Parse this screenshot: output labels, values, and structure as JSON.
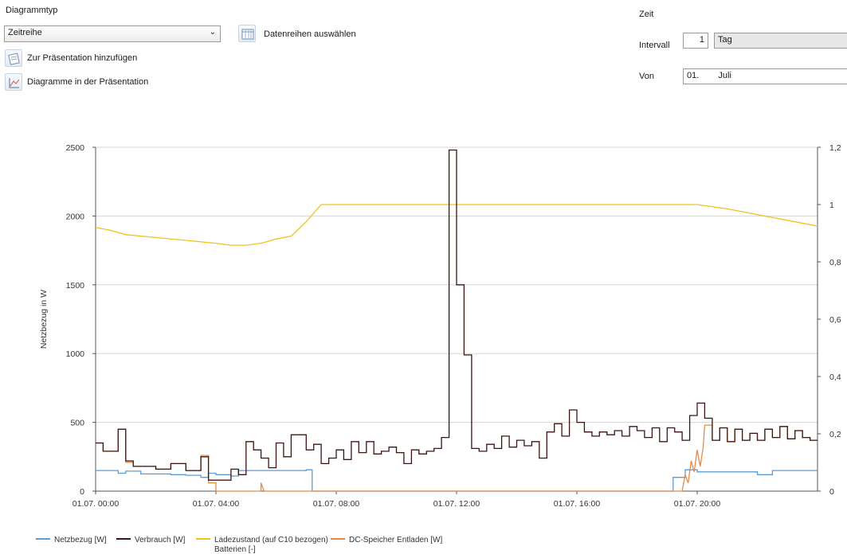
{
  "toolbar": {
    "diagram_type_label": "Diagrammtyp",
    "diagram_type_value": "Zeitreihe",
    "select_series_label": "Datenreihen auswählen",
    "add_to_presentation_label": "Zur Präsentation hinzufügen",
    "diagrams_in_presentation_label": "Diagramme in der Präsentation"
  },
  "time_panel": {
    "time_label": "Zeit",
    "interval_label": "Intervall",
    "interval_value": "1",
    "interval_unit": "Tag",
    "from_label": "Von",
    "from_day": "01.",
    "from_month": "Juli"
  },
  "chart_data": {
    "type": "line",
    "ylabel": "Netzbezug  in W",
    "x_ticks": [
      "01.07. 00:00",
      "01.07. 04:00",
      "01.07. 08:00",
      "01.07. 12:00",
      "01.07. 16:00",
      "01.07. 20:00"
    ],
    "xlim_hours": [
      0,
      24
    ],
    "ylim_left": [
      0,
      2500
    ],
    "ylim_right": [
      0,
      1.2
    ],
    "y_ticks_left": [
      "2500",
      "2000",
      "1500",
      "1000",
      "500",
      "0"
    ],
    "y_ticks_right": [
      "1,2",
      "1",
      "0,8",
      "0,6",
      "0,4",
      "0,2",
      "0"
    ],
    "grid": true,
    "legend_position": "bottom-left",
    "series": [
      {
        "name": "Netzbezug  [W]",
        "axis": "left",
        "color": "#5b9bd5",
        "points": [
          [
            0,
            150
          ],
          [
            0.75,
            150
          ],
          [
            0.75,
            130
          ],
          [
            1.0,
            130
          ],
          [
            1.0,
            145
          ],
          [
            1.5,
            145
          ],
          [
            1.5,
            125
          ],
          [
            2.5,
            125
          ],
          [
            2.5,
            120
          ],
          [
            3.0,
            120
          ],
          [
            3.0,
            115
          ],
          [
            3.5,
            115
          ],
          [
            3.5,
            100
          ],
          [
            3.75,
            100
          ],
          [
            3.75,
            130
          ],
          [
            4.0,
            130
          ],
          [
            4.0,
            120
          ],
          [
            4.5,
            120
          ],
          [
            4.5,
            110
          ],
          [
            4.75,
            110
          ],
          [
            4.75,
            150
          ],
          [
            7.0,
            150
          ],
          [
            7.0,
            155
          ],
          [
            7.2,
            155
          ],
          [
            7.2,
            0
          ],
          [
            19.2,
            0
          ],
          [
            19.2,
            100
          ],
          [
            19.6,
            100
          ],
          [
            19.6,
            155
          ],
          [
            20.0,
            155
          ],
          [
            20.0,
            140
          ],
          [
            22.0,
            140
          ],
          [
            22.0,
            120
          ],
          [
            22.5,
            120
          ],
          [
            22.5,
            150
          ],
          [
            24,
            150
          ]
        ]
      },
      {
        "name": "Verbrauch  [W]",
        "axis": "left",
        "color": "#3c1512",
        "points": [
          [
            0,
            350
          ],
          [
            0.25,
            350
          ],
          [
            0.25,
            290
          ],
          [
            0.75,
            290
          ],
          [
            0.75,
            450
          ],
          [
            1.0,
            450
          ],
          [
            1.0,
            220
          ],
          [
            1.25,
            220
          ],
          [
            1.25,
            180
          ],
          [
            2.0,
            180
          ],
          [
            2.0,
            160
          ],
          [
            2.5,
            160
          ],
          [
            2.5,
            200
          ],
          [
            3.0,
            200
          ],
          [
            3.0,
            150
          ],
          [
            3.5,
            150
          ],
          [
            3.5,
            250
          ],
          [
            3.75,
            250
          ],
          [
            3.75,
            80
          ],
          [
            4.5,
            80
          ],
          [
            4.5,
            160
          ],
          [
            4.75,
            160
          ],
          [
            4.75,
            120
          ],
          [
            5.0,
            120
          ],
          [
            5.0,
            360
          ],
          [
            5.25,
            360
          ],
          [
            5.25,
            300
          ],
          [
            5.5,
            300
          ],
          [
            5.5,
            240
          ],
          [
            5.75,
            240
          ],
          [
            5.75,
            170
          ],
          [
            6.0,
            170
          ],
          [
            6.0,
            350
          ],
          [
            6.25,
            350
          ],
          [
            6.25,
            250
          ],
          [
            6.5,
            250
          ],
          [
            6.5,
            410
          ],
          [
            7.0,
            410
          ],
          [
            7.0,
            300
          ],
          [
            7.25,
            300
          ],
          [
            7.25,
            340
          ],
          [
            7.5,
            340
          ],
          [
            7.5,
            200
          ],
          [
            7.75,
            200
          ],
          [
            7.75,
            240
          ],
          [
            8.0,
            240
          ],
          [
            8.0,
            300
          ],
          [
            8.25,
            300
          ],
          [
            8.25,
            230
          ],
          [
            8.5,
            230
          ],
          [
            8.5,
            360
          ],
          [
            8.75,
            360
          ],
          [
            8.75,
            280
          ],
          [
            9.0,
            280
          ],
          [
            9.0,
            360
          ],
          [
            9.25,
            360
          ],
          [
            9.25,
            270
          ],
          [
            9.5,
            270
          ],
          [
            9.5,
            290
          ],
          [
            9.75,
            290
          ],
          [
            9.75,
            320
          ],
          [
            10.0,
            320
          ],
          [
            10.0,
            280
          ],
          [
            10.25,
            280
          ],
          [
            10.25,
            200
          ],
          [
            10.5,
            200
          ],
          [
            10.5,
            300
          ],
          [
            10.75,
            300
          ],
          [
            10.75,
            270
          ],
          [
            11.0,
            270
          ],
          [
            11.0,
            290
          ],
          [
            11.25,
            290
          ],
          [
            11.25,
            310
          ],
          [
            11.5,
            310
          ],
          [
            11.5,
            390
          ],
          [
            11.75,
            390
          ],
          [
            11.75,
            2480
          ],
          [
            12.0,
            2480
          ],
          [
            12.0,
            1500
          ],
          [
            12.25,
            1500
          ],
          [
            12.25,
            990
          ],
          [
            12.5,
            990
          ],
          [
            12.5,
            310
          ],
          [
            12.75,
            310
          ],
          [
            12.75,
            290
          ],
          [
            13.0,
            290
          ],
          [
            13.0,
            340
          ],
          [
            13.25,
            340
          ],
          [
            13.25,
            310
          ],
          [
            13.5,
            310
          ],
          [
            13.5,
            400
          ],
          [
            13.75,
            400
          ],
          [
            13.75,
            320
          ],
          [
            14.0,
            320
          ],
          [
            14.0,
            370
          ],
          [
            14.25,
            370
          ],
          [
            14.25,
            330
          ],
          [
            14.5,
            330
          ],
          [
            14.5,
            360
          ],
          [
            14.75,
            360
          ],
          [
            14.75,
            240
          ],
          [
            15.0,
            240
          ],
          [
            15.0,
            430
          ],
          [
            15.25,
            430
          ],
          [
            15.25,
            490
          ],
          [
            15.5,
            490
          ],
          [
            15.5,
            400
          ],
          [
            15.75,
            400
          ],
          [
            15.75,
            590
          ],
          [
            16.0,
            590
          ],
          [
            16.0,
            500
          ],
          [
            16.25,
            500
          ],
          [
            16.25,
            430
          ],
          [
            16.5,
            430
          ],
          [
            16.5,
            400
          ],
          [
            16.75,
            400
          ],
          [
            16.75,
            430
          ],
          [
            17.0,
            430
          ],
          [
            17.0,
            410
          ],
          [
            17.25,
            410
          ],
          [
            17.25,
            440
          ],
          [
            17.5,
            440
          ],
          [
            17.5,
            400
          ],
          [
            17.75,
            400
          ],
          [
            17.75,
            470
          ],
          [
            18.0,
            470
          ],
          [
            18.0,
            440
          ],
          [
            18.25,
            440
          ],
          [
            18.25,
            390
          ],
          [
            18.5,
            390
          ],
          [
            18.5,
            460
          ],
          [
            18.75,
            460
          ],
          [
            18.75,
            360
          ],
          [
            19.0,
            360
          ],
          [
            19.0,
            460
          ],
          [
            19.25,
            460
          ],
          [
            19.25,
            430
          ],
          [
            19.5,
            430
          ],
          [
            19.5,
            370
          ],
          [
            19.75,
            370
          ],
          [
            19.75,
            550
          ],
          [
            20.0,
            550
          ],
          [
            20.0,
            640
          ],
          [
            20.25,
            640
          ],
          [
            20.25,
            530
          ],
          [
            20.5,
            530
          ],
          [
            20.5,
            370
          ],
          [
            20.75,
            370
          ],
          [
            20.75,
            460
          ],
          [
            21.0,
            460
          ],
          [
            21.0,
            360
          ],
          [
            21.25,
            360
          ],
          [
            21.25,
            450
          ],
          [
            21.5,
            450
          ],
          [
            21.5,
            370
          ],
          [
            21.75,
            370
          ],
          [
            21.75,
            420
          ],
          [
            22.0,
            420
          ],
          [
            22.0,
            370
          ],
          [
            22.25,
            370
          ],
          [
            22.25,
            450
          ],
          [
            22.5,
            450
          ],
          [
            22.5,
            390
          ],
          [
            22.75,
            390
          ],
          [
            22.75,
            470
          ],
          [
            23.0,
            470
          ],
          [
            23.0,
            380
          ],
          [
            23.25,
            380
          ],
          [
            23.25,
            440
          ],
          [
            23.5,
            440
          ],
          [
            23.5,
            390
          ],
          [
            23.75,
            390
          ],
          [
            23.75,
            370
          ],
          [
            24,
            370
          ]
        ]
      },
      {
        "name": "Ladezustand (auf C10 bezogen)",
        "name_line2": "Batterien  [-]",
        "axis": "right",
        "color": "#f0c020",
        "points": [
          [
            0,
            0.92
          ],
          [
            0.5,
            0.91
          ],
          [
            1,
            0.895
          ],
          [
            2,
            0.885
          ],
          [
            3,
            0.875
          ],
          [
            4,
            0.865
          ],
          [
            4.5,
            0.858
          ],
          [
            5,
            0.858
          ],
          [
            5.5,
            0.865
          ],
          [
            6,
            0.88
          ],
          [
            6.5,
            0.89
          ],
          [
            7,
            0.94
          ],
          [
            7.5,
            1.0
          ],
          [
            8,
            1.0
          ],
          [
            12,
            1.0
          ],
          [
            16,
            1.0
          ],
          [
            20,
            1.0
          ],
          [
            21,
            0.985
          ],
          [
            22,
            0.965
          ],
          [
            23,
            0.945
          ],
          [
            24,
            0.925
          ]
        ]
      },
      {
        "name": "DC-Speicher Entladen  [W]",
        "axis": "left",
        "color": "#e08b4a",
        "points": [
          [
            0,
            350
          ],
          [
            0.25,
            350
          ],
          [
            0.25,
            290
          ],
          [
            0.75,
            290
          ],
          [
            0.75,
            450
          ],
          [
            1.0,
            450
          ],
          [
            1.0,
            210
          ],
          [
            1.25,
            210
          ],
          [
            1.25,
            180
          ],
          [
            2.0,
            180
          ],
          [
            2.0,
            160
          ],
          [
            2.5,
            160
          ],
          [
            2.5,
            200
          ],
          [
            3.0,
            200
          ],
          [
            3.0,
            150
          ],
          [
            3.5,
            150
          ],
          [
            3.5,
            260
          ],
          [
            3.75,
            260
          ],
          [
            3.75,
            60
          ],
          [
            4.0,
            60
          ],
          [
            4.0,
            0
          ],
          [
            5.5,
            0
          ],
          [
            5.5,
            60
          ],
          [
            5.6,
            0
          ],
          [
            19.5,
            0
          ],
          [
            19.6,
            120
          ],
          [
            19.7,
            60
          ],
          [
            19.8,
            220
          ],
          [
            19.9,
            140
          ],
          [
            20.0,
            300
          ],
          [
            20.1,
            180
          ],
          [
            20.2,
            320
          ],
          [
            20.25,
            480
          ],
          [
            20.5,
            480
          ],
          [
            20.5,
            370
          ],
          [
            20.75,
            370
          ],
          [
            20.75,
            460
          ],
          [
            21.0,
            460
          ],
          [
            21.0,
            360
          ],
          [
            21.25,
            360
          ],
          [
            21.25,
            450
          ],
          [
            21.5,
            450
          ],
          [
            21.5,
            370
          ],
          [
            21.75,
            370
          ],
          [
            21.75,
            420
          ],
          [
            22.0,
            420
          ],
          [
            22.0,
            370
          ],
          [
            22.25,
            370
          ],
          [
            22.25,
            450
          ],
          [
            22.5,
            450
          ],
          [
            22.5,
            390
          ],
          [
            22.75,
            390
          ],
          [
            22.75,
            470
          ],
          [
            23.0,
            470
          ],
          [
            23.0,
            380
          ],
          [
            23.25,
            380
          ],
          [
            23.25,
            440
          ],
          [
            23.5,
            440
          ],
          [
            23.5,
            390
          ],
          [
            23.75,
            390
          ],
          [
            23.75,
            370
          ],
          [
            24,
            370
          ]
        ]
      }
    ]
  }
}
